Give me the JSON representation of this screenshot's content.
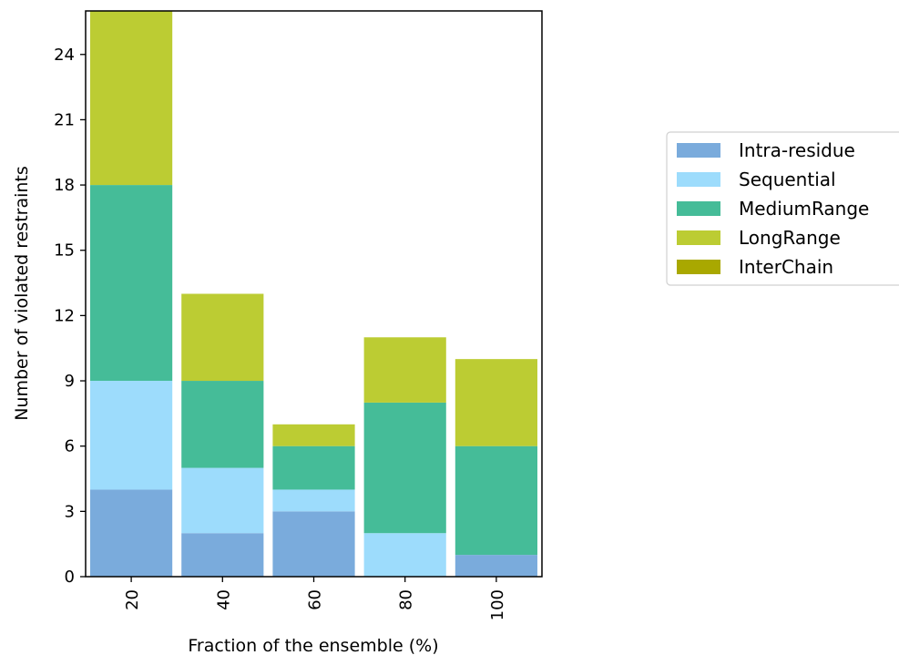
{
  "chart_data": {
    "type": "bar",
    "stacked": true,
    "categories": [
      "20",
      "40",
      "60",
      "80",
      "100"
    ],
    "series": [
      {
        "name": "Intra-residue",
        "color": "#7aabdc",
        "values": [
          4,
          2,
          3,
          0,
          1
        ]
      },
      {
        "name": "Sequential",
        "color": "#9ddcfc",
        "values": [
          5,
          3,
          1,
          2,
          0
        ]
      },
      {
        "name": "MediumRange",
        "color": "#45bc98",
        "values": [
          9,
          4,
          2,
          6,
          5
        ]
      },
      {
        "name": "LongRange",
        "color": "#bccc33",
        "values": [
          8,
          4,
          1,
          3,
          4
        ]
      },
      {
        "name": "InterChain",
        "color": "#a9a800",
        "values": [
          0,
          0,
          0,
          0,
          0
        ]
      }
    ],
    "xlabel": "Fraction of the ensemble (%)",
    "ylabel": "Number of violated restraints",
    "ylim": [
      0,
      26
    ],
    "yticks": [
      0,
      3,
      6,
      9,
      12,
      15,
      18,
      21,
      24
    ],
    "legend_position": "right"
  }
}
